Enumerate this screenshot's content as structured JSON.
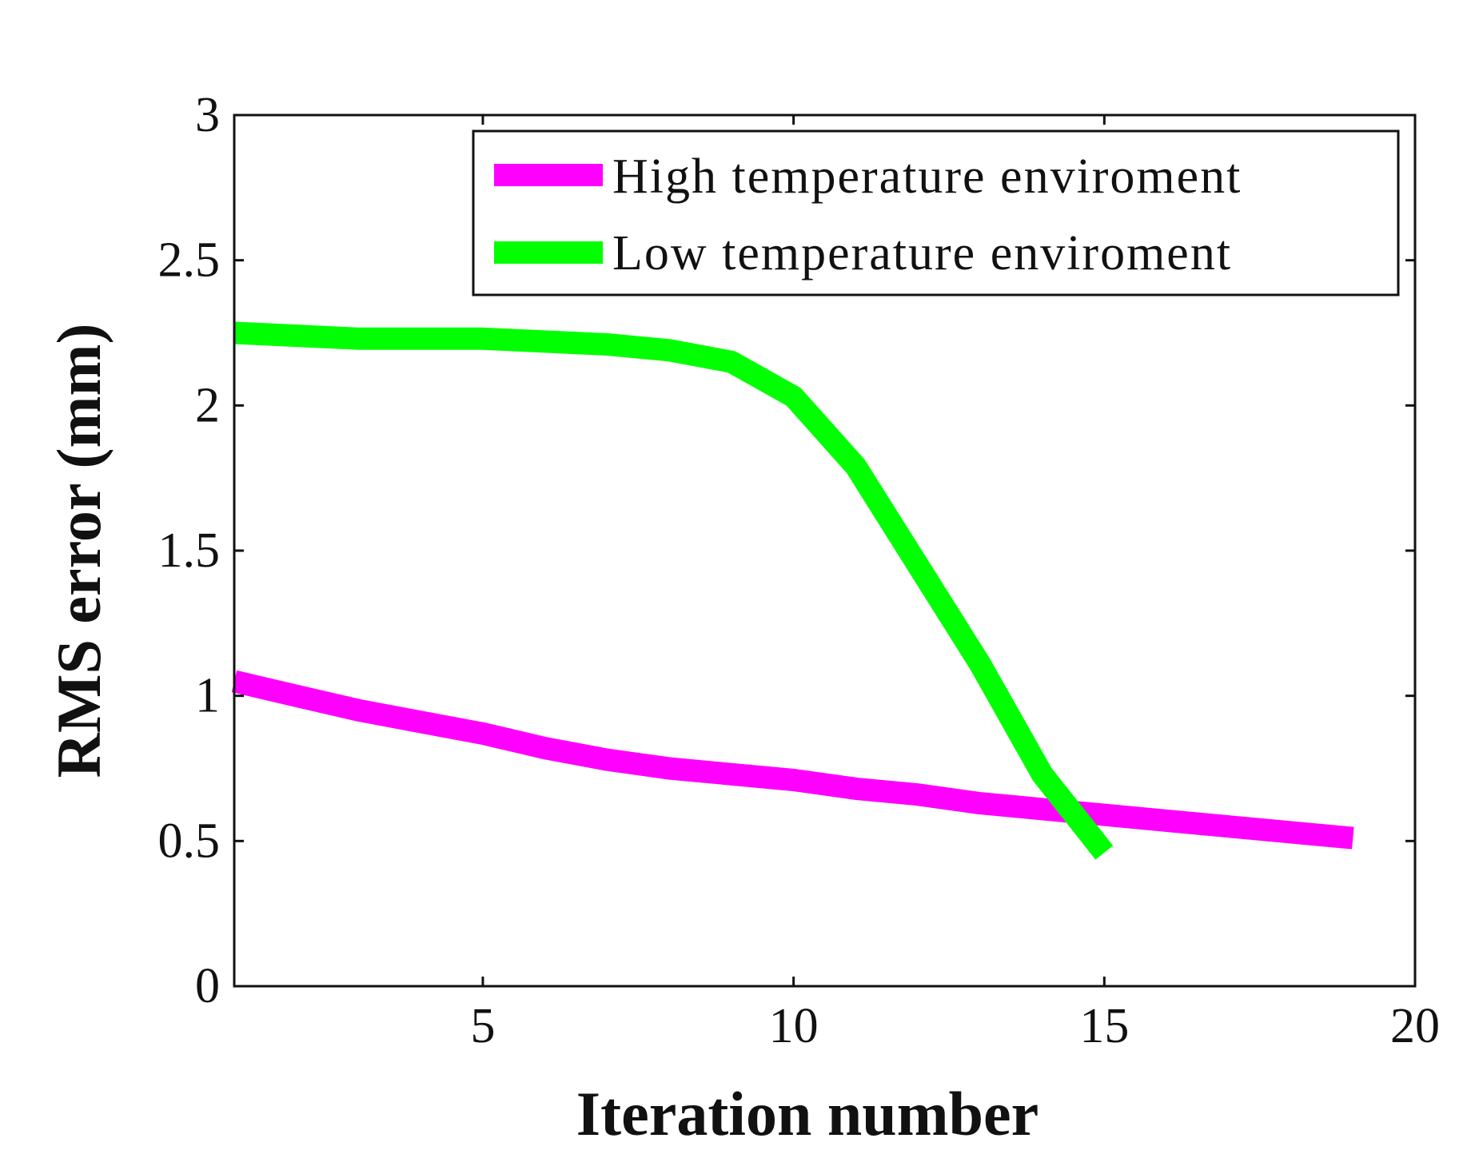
{
  "chart_data": {
    "type": "line",
    "title": "",
    "xlabel": "Iteration number",
    "ylabel": "RMS error (mm)",
    "xlim": [
      1,
      20
    ],
    "ylim": [
      0,
      3
    ],
    "xticks": [
      {
        "value": 5,
        "label": "5"
      },
      {
        "value": 10,
        "label": "10"
      },
      {
        "value": 15,
        "label": "15"
      },
      {
        "value": 20,
        "label": "20"
      }
    ],
    "yticks": [
      {
        "value": 0,
        "label": "0"
      },
      {
        "value": 0.5,
        "label": "0.5"
      },
      {
        "value": 1,
        "label": "1"
      },
      {
        "value": 1.5,
        "label": "1.5"
      },
      {
        "value": 2,
        "label": "2"
      },
      {
        "value": 2.5,
        "label": "2.5"
      },
      {
        "value": 3,
        "label": "3"
      }
    ],
    "grid": false,
    "legend_position": "top-right",
    "series": [
      {
        "name": "High temperature enviroment",
        "color": "#ff00ff",
        "x": [
          1,
          2,
          3,
          4,
          5,
          6,
          7,
          8,
          9,
          10,
          11,
          12,
          13,
          14,
          15,
          16,
          17,
          18,
          19
        ],
        "values": [
          1.05,
          1.0,
          0.95,
          0.91,
          0.87,
          0.82,
          0.78,
          0.75,
          0.73,
          0.71,
          0.68,
          0.66,
          0.63,
          0.61,
          0.59,
          0.57,
          0.55,
          0.53,
          0.51
        ]
      },
      {
        "name": "Low temperature enviroment",
        "color": "#00ff00",
        "x": [
          1,
          2,
          3,
          4,
          5,
          6,
          7,
          8,
          9,
          10,
          11,
          12,
          13,
          14,
          15
        ],
        "values": [
          2.25,
          2.24,
          2.23,
          2.23,
          2.23,
          2.22,
          2.21,
          2.19,
          2.15,
          2.03,
          1.79,
          1.45,
          1.11,
          0.73,
          0.46
        ]
      }
    ]
  }
}
